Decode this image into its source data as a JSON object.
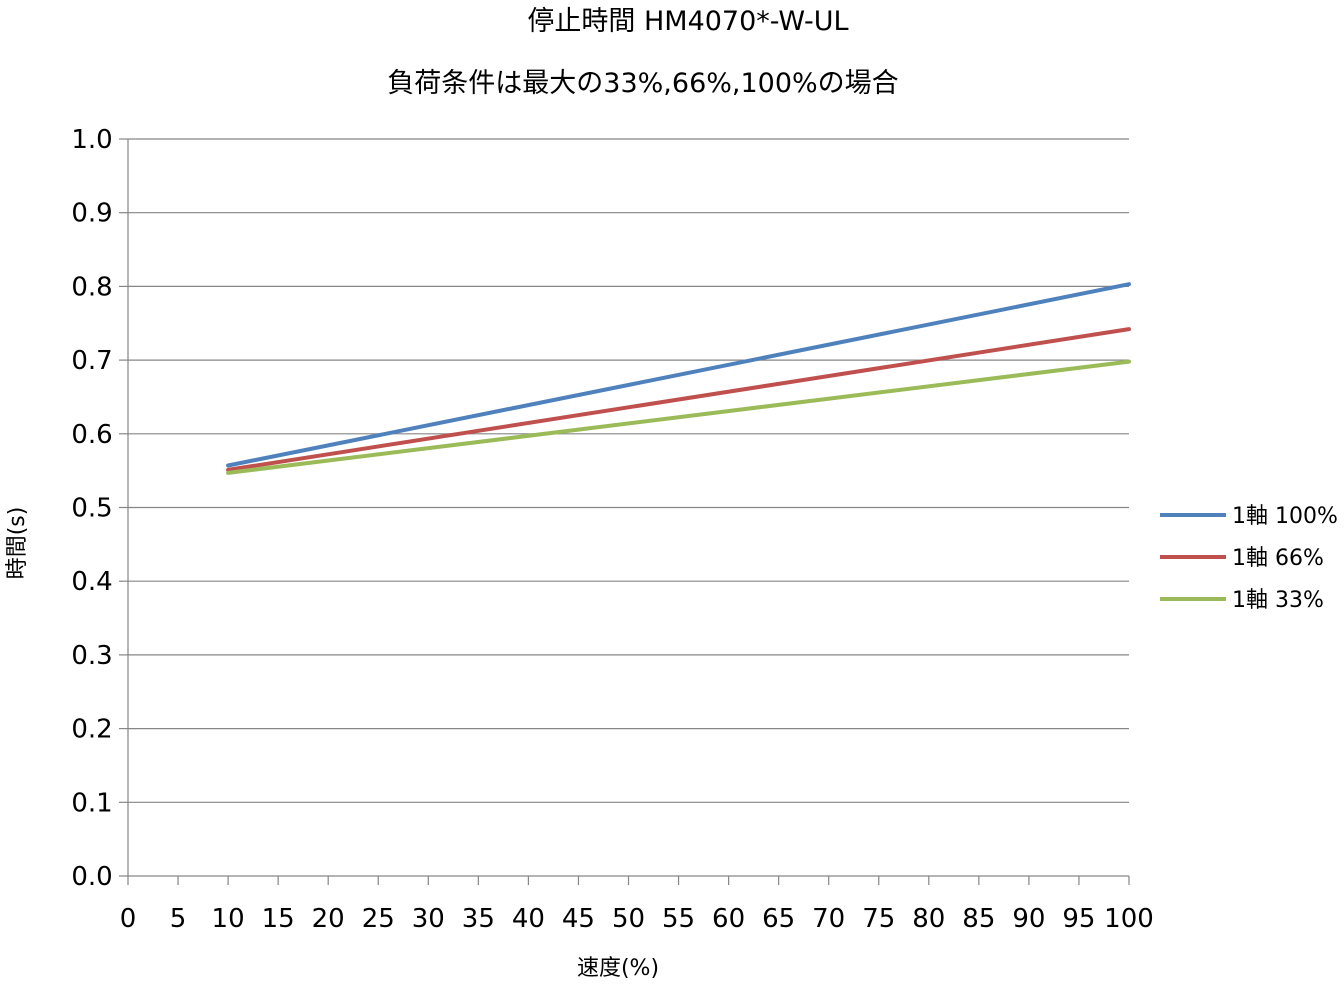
{
  "chart_data": {
    "type": "line",
    "title": "停止時間 HM4070*-W-UL",
    "subtitle": "負荷条件は最大の33%,66%,100%の場合",
    "xlabel": "速度(%)",
    "ylabel": "時間(s)",
    "xlim": [
      0,
      100
    ],
    "ylim": [
      0,
      1.0
    ],
    "x_ticks": [
      "0",
      "5",
      "10",
      "15",
      "20",
      "25",
      "30",
      "35",
      "40",
      "45",
      "50",
      "55",
      "60",
      "65",
      "70",
      "75",
      "80",
      "85",
      "90",
      "95",
      "100"
    ],
    "y_ticks": [
      "0.0",
      "0.1",
      "0.2",
      "0.3",
      "0.4",
      "0.5",
      "0.6",
      "0.7",
      "0.8",
      "0.9",
      "1.0"
    ],
    "x": [
      10,
      100
    ],
    "series": [
      {
        "name": "1軸 100%",
        "values": [
          0.557,
          0.803
        ],
        "color": "#4F81BD"
      },
      {
        "name": "1軸 66%",
        "values": [
          0.551,
          0.742
        ],
        "color": "#C0504D"
      },
      {
        "name": "1軸 33%",
        "values": [
          0.547,
          0.698
        ],
        "color": "#9BBB59"
      }
    ],
    "grid": "horizontal",
    "legend_position": "right"
  }
}
